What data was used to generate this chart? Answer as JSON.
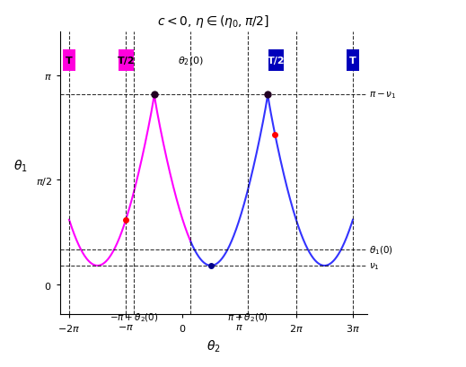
{
  "title": "c < 0, \\eta \\in (\\eta_0, \\pi/2]",
  "xlabel": "\\theta_2",
  "ylabel": "\\theta_1",
  "xlim": [
    -6.8,
    10.2
  ],
  "ylim": [
    -0.45,
    3.8
  ],
  "background": "#ffffff",
  "pi": 3.14159265358979,
  "nu1": 0.28,
  "theta1_0": 0.52,
  "pi_minus_nu1": 2.86,
  "theta2_0": 0.45,
  "magenta_color": "#ff00ff",
  "blue_color": "#3333ff",
  "magenta_box_color": "#ff00dd",
  "blue_box_color": "#0000bb",
  "red_dot_color": "#ff0000",
  "ytick_vals": [
    0.0,
    1.5707963,
    3.14159265
  ],
  "xtick_vals": [
    -6.28318,
    -3.14159,
    0,
    3.14159,
    6.28318,
    9.42478
  ]
}
